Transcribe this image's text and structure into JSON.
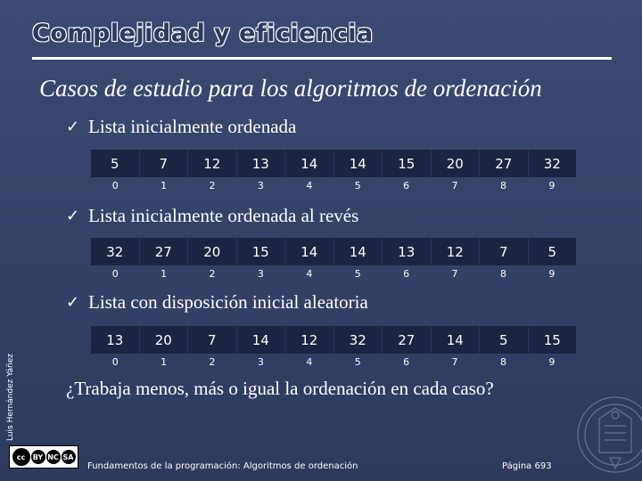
{
  "slide": {
    "title": "Complejidad y eficiencia",
    "subtitle": "Casos de estudio para los algoritmos de ordenación",
    "check_glyph": "✓",
    "cases": [
      {
        "label": "Lista inicialmente ordenada",
        "values": [
          "5",
          "7",
          "12",
          "13",
          "14",
          "14",
          "15",
          "20",
          "27",
          "32"
        ]
      },
      {
        "label": "Lista inicialmente ordenada al revés",
        "values": [
          "32",
          "27",
          "20",
          "15",
          "14",
          "14",
          "13",
          "12",
          "7",
          "5"
        ]
      },
      {
        "label": "Lista con disposición inicial aleatoria",
        "values": [
          "13",
          "20",
          "7",
          "14",
          "12",
          "32",
          "27",
          "14",
          "5",
          "15"
        ]
      }
    ],
    "indices": [
      "0",
      "1",
      "2",
      "3",
      "4",
      "5",
      "6",
      "7",
      "8",
      "9"
    ],
    "question": "¿Trabaja menos, más o igual la ordenación en cada caso?",
    "side_author": "Luis Hernández Yáñez",
    "license": {
      "cc": "cc",
      "by": "BY",
      "nc": "NC",
      "sa": "SA"
    },
    "footer": "Fundamentos de la programación: Algoritmos de ordenación",
    "page_label": "Página 693"
  },
  "colors": {
    "background": "#3b4a72",
    "cell_fill": "#1b2440",
    "text": "#ffffff"
  },
  "icons": [
    "check-icon",
    "creative-commons-icon",
    "university-seal-icon"
  ]
}
